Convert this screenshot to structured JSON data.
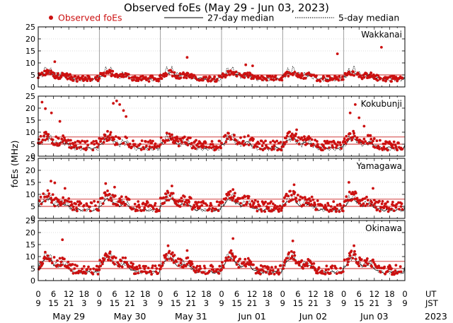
{
  "chart_data": {
    "type": "scatter",
    "title": "Observed foEs (May 29 - Jun 03, 2023)",
    "ylabel": "foEs (MHz)",
    "legend": {
      "observed": "Observed foEs",
      "median27": "27-day median",
      "median5": "5-day median",
      "placement": "top"
    },
    "colors": {
      "observed": "#cc1111",
      "median27": "#000000",
      "median5": "#000000",
      "reference": "#cc2222"
    },
    "ylim": [
      0,
      25
    ],
    "yticks": [
      0,
      5,
      10,
      15,
      20,
      25
    ],
    "xlim_hours": [
      0,
      144
    ],
    "time_axes": {
      "ut_label": "UT",
      "jst_label": "JST",
      "ut_ticks": [
        "0",
        "6",
        "12",
        "18",
        "0",
        "6",
        "12",
        "18",
        "0",
        "6",
        "12",
        "18",
        "0",
        "6",
        "12",
        "18",
        "0",
        "6",
        "12",
        "18",
        "0",
        "6",
        "12",
        "18",
        "0"
      ],
      "jst_ticks": [
        "9",
        "15",
        "21",
        "3",
        "9",
        "15",
        "21",
        "3",
        "9",
        "15",
        "21",
        "3",
        "9",
        "15",
        "21",
        "3",
        "9",
        "15",
        "21",
        "3",
        "9",
        "15",
        "21",
        "3",
        "9"
      ],
      "day_labels": [
        "May 29",
        "May 30",
        "May 31",
        "Jun 01",
        "Jun 02",
        "Jun 03"
      ],
      "year_label": "2023"
    },
    "panels": [
      {
        "station": "Wakkanai",
        "ref_lines": [
          5
        ],
        "median27_base": 3.5,
        "median5_base": 3.0,
        "median27_amp": 2.5,
        "median5_amp": 4.0,
        "obs_base": 3.5,
        "obs_amp": 2.5,
        "obs_scatter": 1.2,
        "outliers": [
          [
            58.5,
            12.3
          ],
          [
            6.5,
            10.5
          ],
          [
            81.5,
            9.2
          ],
          [
            134.8,
            16.5
          ],
          [
            117.5,
            13.8
          ],
          [
            84.2,
            8.8
          ]
        ]
      },
      {
        "station": "Kokubunji",
        "ref_lines": [
          5,
          8
        ],
        "median27_base": 3.5,
        "median5_base": 3.0,
        "median27_amp": 4.0,
        "median5_amp": 5.0,
        "obs_base": 4.5,
        "obs_amp": 4.0,
        "obs_scatter": 2.0,
        "outliers": [
          [
            1.5,
            22.5
          ],
          [
            2.8,
            19.8
          ],
          [
            5.2,
            18.0
          ],
          [
            29.5,
            22.0
          ],
          [
            30.8,
            23.0
          ],
          [
            32.0,
            21.5
          ],
          [
            33.5,
            19.0
          ],
          [
            34.5,
            16.5
          ],
          [
            8.5,
            14.5
          ],
          [
            122.5,
            18.0
          ],
          [
            124.5,
            21.5
          ],
          [
            126.0,
            16.0
          ],
          [
            128.0,
            12.5
          ],
          [
            101.5,
            11.0
          ]
        ]
      },
      {
        "station": "Yamagawa",
        "ref_lines": [
          5,
          8
        ],
        "median27_base": 3.5,
        "median5_base": 3.5,
        "median27_amp": 4.5,
        "median5_amp": 5.5,
        "obs_base": 5.0,
        "obs_amp": 4.5,
        "obs_scatter": 2.2,
        "outliers": [
          [
            5.0,
            15.5
          ],
          [
            6.5,
            14.8
          ],
          [
            26.5,
            14.5
          ],
          [
            30.0,
            13.0
          ],
          [
            52.5,
            13.5
          ],
          [
            76.5,
            12.0
          ],
          [
            100.5,
            14.0
          ],
          [
            122.0,
            15.0
          ],
          [
            131.5,
            12.5
          ],
          [
            10.5,
            12.5
          ]
        ]
      },
      {
        "station": "Okinawa",
        "ref_lines": [
          5,
          8
        ],
        "median27_base": 3.5,
        "median5_base": 3.5,
        "median27_amp": 6.0,
        "median5_amp": 7.0,
        "obs_base": 4.5,
        "obs_amp": 6.0,
        "obs_scatter": 2.0,
        "outliers": [
          [
            9.5,
            17.0
          ],
          [
            51.0,
            14.5
          ],
          [
            76.5,
            17.5
          ],
          [
            100.0,
            16.5
          ],
          [
            124.0,
            14.5
          ],
          [
            58.5,
            12.5
          ]
        ]
      }
    ]
  }
}
